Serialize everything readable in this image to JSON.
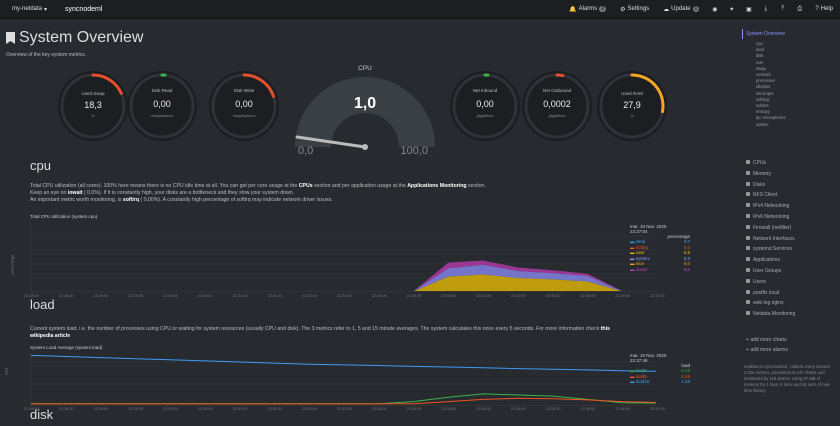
{
  "topbar": {
    "brand": "my-netdata",
    "brand_caret": "▾",
    "host": "syncnodeml",
    "alarms_label": "Alarms",
    "alarms_count": "2",
    "settings_label": "Settings",
    "update_label": "Update",
    "update_count": "1",
    "help_label": "Help"
  },
  "page": {
    "title": "System Overview",
    "subtitle": "Overview of the key system metrics."
  },
  "gauges": {
    "used_swap": {
      "label": "Used Swap",
      "value": "18,3",
      "unit": "%",
      "percent": 18.3,
      "color": "#e2502e"
    },
    "disk_read": {
      "label": "Disk Read",
      "value": "0,00",
      "unit": "megabytes/s",
      "percent": 0,
      "color": "#3cb44b"
    },
    "disk_write": {
      "label": "Disk Write",
      "value": "0,00",
      "unit": "megabytes/s",
      "percent": 20,
      "color": "#e2502e"
    },
    "net_inbound": {
      "label": "Net Inbound",
      "value": "0,00",
      "unit": "gigabits/s",
      "percent": 0,
      "color": "#3cb44b"
    },
    "net_outbound": {
      "label": "Net Outbound",
      "value": "0,0002",
      "unit": "gigabits/s",
      "percent": 3,
      "color": "#e2502e"
    },
    "used_ram": {
      "label": "Used RAM",
      "value": "27,9",
      "unit": "%",
      "percent": 27.9,
      "color": "#f5a623"
    }
  },
  "cpu_gauge": {
    "label": "CPU",
    "value": "1,0",
    "min": "0,0",
    "max": "100,0",
    "unit": "%",
    "percent": 1.0
  },
  "sections": {
    "cpu": {
      "heading": "cpu",
      "p1a": "Total CPU utilization (all cores). 100% here means there is no CPU idle time at all. You can get per core usage at the ",
      "p1b": "CPUs",
      "p1c": " section and per application usage at the ",
      "p1d": "Applications Monitoring",
      "p1e": " section.",
      "p2a": "Keep an eye on ",
      "p2b": "iowait",
      "p2c": " ( 0,0%). If it is constantly high, your disks are a bottleneck and they slow your system down.",
      "p3a": "An important metric worth monitoring, is ",
      "p3b": "softirq",
      "p3c": " ( 0,00%). A constantly high percentage of softirq may indicate network driver issues.",
      "chart_title": "Total CPU utilization (system.cpu)",
      "ylabel": "percentage",
      "date": "mar, 10 Nov. 2020",
      "time": "22:37:04",
      "legend_header": "percentage",
      "legend": [
        {
          "name": "steal",
          "value": "0,0",
          "color": "#3e9cf7"
        },
        {
          "name": "softirq",
          "value": "0,0",
          "color": "#f05322"
        },
        {
          "name": "user",
          "value": "0,8",
          "color": "#f3c300"
        },
        {
          "name": "system",
          "value": "0,3",
          "color": "#8f8ffb"
        },
        {
          "name": "nice",
          "value": "0,0",
          "color": "#f5a623"
        },
        {
          "name": "iowait",
          "value": "0,0",
          "color": "#c33cb4"
        }
      ],
      "yticks": [
        "100,0",
        "80,0",
        "60,0",
        "40,0",
        "20,0",
        "0,0"
      ],
      "xticks": [
        "22:28:00",
        "22:28:30",
        "22:29:00",
        "22:29:30",
        "22:30:00",
        "22:30:30",
        "22:31:00",
        "22:31:30",
        "22:32:00",
        "22:32:30",
        "22:33:00",
        "22:33:30",
        "22:34:00",
        "22:34:30",
        "22:35:00",
        "22:35:30",
        "22:36:00",
        "22:36:30",
        "22:37:00"
      ]
    },
    "load": {
      "heading": "load",
      "p1": "Current system load, i.e. the number of processes using CPU or waiting for system resources (usually CPU and disk). The 3 metrics refer to 1, 5 and 15 minute averages. The system calculates this once every 5 seconds. For more information check ",
      "p1b": "this",
      "p1c": "wikipedia article",
      "chart_title": "System Load Average (system.load)",
      "ylabel": "load",
      "date": "mar, 10 Nov. 2020",
      "time": "22:37:46",
      "legend_header": "load",
      "legend": [
        {
          "name": "load1",
          "value": "0,13",
          "color": "#3cb44b"
        },
        {
          "name": "load5",
          "value": "0,16",
          "color": "#f05322"
        },
        {
          "name": "load15",
          "value": "1,58",
          "color": "#3e9cf7"
        }
      ],
      "yticks": [
        "2,00",
        "1,00"
      ],
      "xticks": [
        "22:28:00",
        "22:28:30",
        "22:29:00",
        "22:29:30",
        "22:30:00",
        "22:30:30",
        "22:31:00",
        "22:31:30",
        "22:32:00",
        "22:32:30",
        "22:33:00",
        "22:33:30",
        "22:34:00",
        "22:34:30",
        "22:35:00",
        "22:35:30",
        "22:36:00",
        "22:36:30",
        "22:37:00"
      ]
    },
    "disk": {
      "heading": "disk"
    }
  },
  "sidebar": {
    "active": "System Overview",
    "subitems": [
      "cpu",
      "load",
      "disk",
      "ram",
      "swap",
      "network",
      "processes",
      "idlejitter",
      "interrupts",
      "softirqs",
      "softnet",
      "entropy",
      "ipc semaphores",
      "uptime"
    ],
    "items": [
      "CPUs",
      "Memory",
      "Disks",
      "NFS Client",
      "IPv4 Networking",
      "IPv6 Networking",
      "Firewall (netfilter)",
      "Network Interfaces",
      "systemd Services",
      "Applications",
      "User Groups",
      "Users",
      "postfix local",
      "web log nginx",
      "Netdata Monitoring"
    ],
    "add_charts": "add more charts",
    "add_alarms": "add more alarms",
    "footer": "netdata on syncnodeml, collects every second 2.526 metrics, presented as 237 charts and monitored by 118 alarms, using 37 MB of memory for 1 hour, 6 mins and 36 secs of real-time history."
  },
  "chart_data": [
    {
      "type": "area",
      "title": "Total CPU utilization (system.cpu)",
      "ylabel": "percentage",
      "ylim": [
        0,
        100
      ],
      "series": [
        {
          "name": "user",
          "values": [
            0.8,
            0.8,
            1,
            0.8,
            0.9,
            0.8,
            1,
            0.8,
            0.8,
            0.9,
            0.8,
            0.8,
            22,
            25,
            20,
            18,
            15,
            1,
            0.8
          ]
        },
        {
          "name": "system",
          "values": [
            0.3,
            0.3,
            0.4,
            0.3,
            0.3,
            0.3,
            0.4,
            0.3,
            0.3,
            0.3,
            0.3,
            0.3,
            12,
            14,
            10,
            9,
            8,
            0.3,
            0.3
          ]
        },
        {
          "name": "iowait",
          "values": [
            0,
            0,
            0,
            0,
            0,
            0,
            0,
            0,
            0,
            0,
            0,
            0,
            8,
            6,
            5,
            4,
            3,
            0,
            0
          ]
        }
      ],
      "x": [
        "22:28:00",
        "22:28:30",
        "22:29:00",
        "22:29:30",
        "22:30:00",
        "22:30:30",
        "22:31:00",
        "22:31:30",
        "22:32:00",
        "22:32:30",
        "22:33:00",
        "22:33:30",
        "22:34:00",
        "22:34:30",
        "22:35:00",
        "22:35:30",
        "22:36:00",
        "22:36:30",
        "22:37:00"
      ]
    },
    {
      "type": "line",
      "title": "System Load Average (system.load)",
      "ylabel": "load",
      "ylim": [
        0,
        2.5
      ],
      "series": [
        {
          "name": "load1",
          "values": [
            0.1,
            0.1,
            0.1,
            0.1,
            0.1,
            0.1,
            0.1,
            0.1,
            0.1,
            0.1,
            0.1,
            0.2,
            0.4,
            0.55,
            0.5,
            0.45,
            0.3,
            0.15,
            0.13
          ]
        },
        {
          "name": "load5",
          "values": [
            0.1,
            0.1,
            0.1,
            0.1,
            0.1,
            0.1,
            0.1,
            0.1,
            0.1,
            0.1,
            0.1,
            0.1,
            0.2,
            0.3,
            0.35,
            0.33,
            0.28,
            0.2,
            0.16
          ]
        },
        {
          "name": "load15",
          "values": [
            2.3,
            2.25,
            2.2,
            2.15,
            2.1,
            2.05,
            2.0,
            1.95,
            1.9,
            1.87,
            1.84,
            1.8,
            1.77,
            1.74,
            1.7,
            1.67,
            1.64,
            1.6,
            1.58
          ]
        }
      ],
      "x": [
        "22:28:00",
        "22:28:30",
        "22:29:00",
        "22:29:30",
        "22:30:00",
        "22:30:30",
        "22:31:00",
        "22:31:30",
        "22:32:00",
        "22:32:30",
        "22:33:00",
        "22:33:30",
        "22:34:00",
        "22:34:30",
        "22:35:00",
        "22:35:30",
        "22:36:00",
        "22:36:30",
        "22:37:00"
      ]
    }
  ]
}
